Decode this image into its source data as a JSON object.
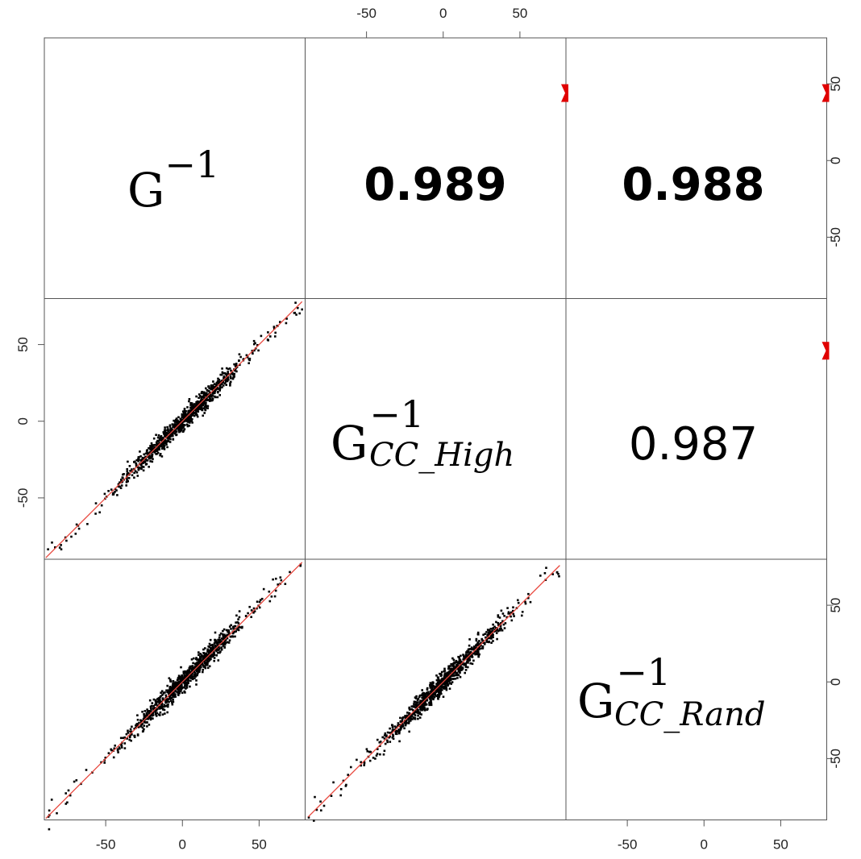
{
  "chart_data": {
    "type": "scatter",
    "title": "",
    "layout": "pairs-matrix",
    "variables": [
      {
        "base": "G",
        "sup": "−1",
        "sub": ""
      },
      {
        "base": "G",
        "sup": "−1",
        "sub": "CC_High"
      },
      {
        "base": "G",
        "sup": "−1",
        "sub": "CC_Rand"
      }
    ],
    "axis_range": [
      -90,
      80
    ],
    "ticks": [
      -50,
      0,
      50
    ],
    "tick_labels": [
      "-50",
      "0",
      "50"
    ],
    "correlations": [
      {
        "row": 0,
        "col": 1,
        "value": "0.989",
        "bold": true
      },
      {
        "row": 0,
        "col": 2,
        "value": "0.988",
        "bold": true
      },
      {
        "row": 1,
        "col": 2,
        "value": "0.987",
        "bold": false
      }
    ],
    "scatter_panels": [
      {
        "row": 1,
        "col": 0,
        "x_variable": 0,
        "y_variable": 1,
        "x_range": [
          -89,
          78
        ],
        "n_points": 900,
        "spread": 3.2,
        "seed": 11
      },
      {
        "row": 2,
        "col": 0,
        "x_variable": 0,
        "y_variable": 2,
        "x_range": [
          -89,
          78
        ],
        "n_points": 900,
        "spread": 3.4,
        "seed": 23
      },
      {
        "row": 2,
        "col": 1,
        "x_variable": 1,
        "y_variable": 2,
        "x_range": [
          -88,
          76
        ],
        "n_points": 900,
        "spread": 3.5,
        "seed": 37
      }
    ],
    "point_color": "#000000",
    "smooth_color": "#e8463c",
    "corner_marker_color": "#e00000",
    "grid": false,
    "legend": "none"
  }
}
